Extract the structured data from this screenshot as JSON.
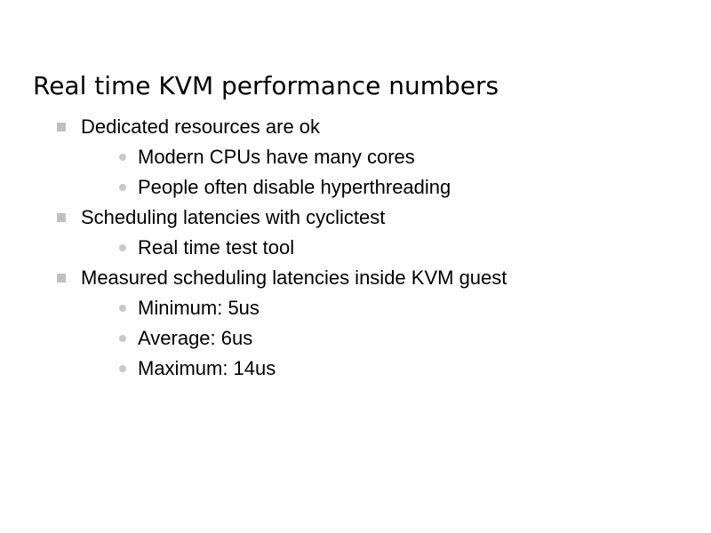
{
  "slide": {
    "title": "Real time KVM performance numbers",
    "bullets": [
      {
        "level": 1,
        "text": "Dedicated resources are ok"
      },
      {
        "level": 2,
        "text": "Modern CPUs have many cores"
      },
      {
        "level": 2,
        "text": "People often disable hyperthreading"
      },
      {
        "level": 1,
        "text": "Scheduling latencies with cyclictest"
      },
      {
        "level": 2,
        "text": "Real time test tool"
      },
      {
        "level": 1,
        "text": "Measured scheduling latencies inside KVM guest"
      },
      {
        "level": 2,
        "text": "Minimum: 5us"
      },
      {
        "level": 2,
        "text": "Average: 6us"
      },
      {
        "level": 2,
        "text": "Maximum: 14us"
      }
    ],
    "bullet_icons": {
      "level1": "square-bullet-icon",
      "level2": "dot-bullet-icon"
    },
    "colors": {
      "bullet": "#c0c0c0",
      "text": "#000000",
      "background": "#ffffff"
    }
  }
}
